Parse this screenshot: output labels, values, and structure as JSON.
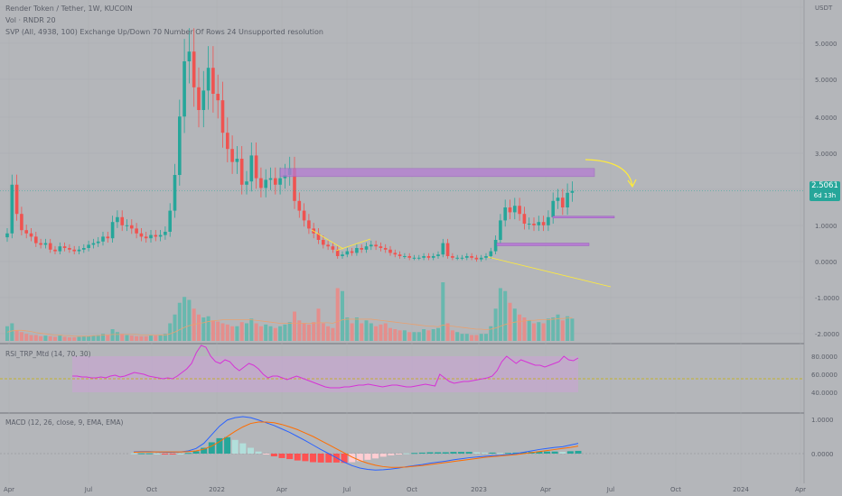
{
  "header": {
    "symbol_line": "Render Token / Tether, 1W, KUCOIN",
    "volume_line": "Vol · RNDR  20",
    "svp_line": "SVP (All, 4938, 100)  Exchange  Up/Down  70  Number Of Rows  24  Unsupported resolution"
  },
  "price_tag": {
    "price": "2.5061",
    "countdown": "6d 13h"
  },
  "colors": {
    "background": "#b4b6ba",
    "up": "#26a69a",
    "down": "#ef5350",
    "zone": "#b57cd2",
    "rsi_line": "#d633d6",
    "rsi_band": "#c6a6d0",
    "macd_line": "#2962ff",
    "signal_line": "#ff6d00",
    "annotation": "#ffeb3b"
  },
  "chart_data": [
    {
      "type": "candlestick",
      "title": "Render Token / Tether, 1W, KUCOIN",
      "y_axis_unit": "USDT",
      "y_ticks": [
        "USDT",
        "5.0000",
        "5.0000",
        "4.0000",
        "3.0000",
        "2.0000",
        "1.0000",
        "0.0000",
        "-1.0000",
        "-2.0000"
      ],
      "x_ticks": [
        "Apr",
        "Jul",
        "Oct",
        "2022",
        "Apr",
        "Jul",
        "Oct",
        "2023",
        "Apr",
        "Jul",
        "Oct",
        "2024",
        "Apr"
      ],
      "last_price": 2.5061,
      "closes": [
        1.2,
        2.7,
        1.8,
        1.3,
        1.2,
        1.1,
        0.9,
        0.85,
        0.9,
        0.7,
        0.65,
        0.8,
        0.75,
        0.7,
        0.65,
        0.7,
        0.75,
        0.85,
        0.9,
        0.95,
        1.1,
        1.05,
        1.55,
        1.7,
        1.45,
        1.45,
        1.35,
        1.2,
        1.1,
        1.05,
        1.15,
        1.1,
        1.15,
        1.25,
        1.9,
        3.0,
        4.8,
        6.5,
        6.8,
        5.7,
        5.0,
        5.6,
        6.3,
        5.5,
        5.3,
        4.3,
        3.8,
        3.4,
        3.5,
        2.7,
        2.8,
        3.6,
        2.9,
        2.6,
        2.85,
        2.9,
        2.7,
        2.9,
        3.0,
        3.2,
        2.2,
        1.9,
        1.6,
        1.35,
        1.2,
        1.0,
        0.85,
        0.8,
        0.7,
        0.5,
        0.55,
        0.65,
        0.6,
        0.75,
        0.7,
        0.8,
        0.85,
        0.8,
        0.75,
        0.7,
        0.6,
        0.55,
        0.5,
        0.5,
        0.45,
        0.45,
        0.45,
        0.5,
        0.45,
        0.5,
        0.55,
        0.9,
        0.5,
        0.45,
        0.45,
        0.45,
        0.5,
        0.45,
        0.4,
        0.45,
        0.5,
        0.65,
        1.0,
        1.6,
        2.0,
        1.85,
        2.05,
        1.8,
        1.5,
        1.5,
        1.45,
        1.55,
        1.45,
        1.7,
        2.2,
        2.3,
        2.0,
        2.45,
        2.51
      ],
      "annotations": {
        "resistance_zone": [
          2.95,
          3.2
        ],
        "support_zones": [
          [
            1.68,
            1.73
          ],
          [
            0.82,
            0.9
          ]
        ]
      }
    },
    {
      "type": "bar",
      "title": "Vol · RNDR  20",
      "values": [
        0.25,
        0.3,
        0.18,
        0.15,
        0.12,
        0.1,
        0.1,
        0.08,
        0.09,
        0.08,
        0.07,
        0.09,
        0.07,
        0.06,
        0.06,
        0.07,
        0.08,
        0.08,
        0.09,
        0.1,
        0.12,
        0.1,
        0.2,
        0.15,
        0.12,
        0.1,
        0.09,
        0.08,
        0.08,
        0.08,
        0.09,
        0.09,
        0.1,
        0.12,
        0.3,
        0.45,
        0.65,
        0.75,
        0.7,
        0.55,
        0.45,
        0.4,
        0.42,
        0.35,
        0.33,
        0.3,
        0.28,
        0.25,
        0.25,
        0.32,
        0.3,
        0.38,
        0.3,
        0.25,
        0.28,
        0.25,
        0.22,
        0.25,
        0.28,
        0.32,
        0.5,
        0.35,
        0.3,
        0.28,
        0.32,
        0.55,
        0.3,
        0.25,
        0.22,
        0.9,
        0.85,
        0.4,
        0.3,
        0.4,
        0.3,
        0.35,
        0.3,
        0.25,
        0.28,
        0.3,
        0.22,
        0.2,
        0.18,
        0.18,
        0.15,
        0.15,
        0.15,
        0.2,
        0.18,
        0.2,
        0.22,
        1.0,
        0.3,
        0.18,
        0.15,
        0.12,
        0.12,
        0.1,
        0.1,
        0.12,
        0.12,
        0.25,
        0.55,
        0.9,
        0.85,
        0.65,
        0.55,
        0.45,
        0.4,
        0.35,
        0.3,
        0.32,
        0.3,
        0.38,
        0.4,
        0.45,
        0.35,
        0.42,
        0.38
      ],
      "ma_values": [
        0.15,
        0.17,
        0.18,
        0.18,
        0.17,
        0.16,
        0.14,
        0.13,
        0.12,
        0.11,
        0.1,
        0.1,
        0.09,
        0.09,
        0.08,
        0.08,
        0.08,
        0.08,
        0.09,
        0.09,
        0.1,
        0.1,
        0.11,
        0.11,
        0.11,
        0.11,
        0.11,
        0.11,
        0.1,
        0.1,
        0.1,
        0.1,
        0.1,
        0.1,
        0.12,
        0.15,
        0.19,
        0.23,
        0.26,
        0.28,
        0.3,
        0.31,
        0.33,
        0.34,
        0.35,
        0.36,
        0.36,
        0.36,
        0.36,
        0.36,
        0.36,
        0.36,
        0.35,
        0.34,
        0.33,
        0.32,
        0.31,
        0.3,
        0.3,
        0.3,
        0.3,
        0.3,
        0.3,
        0.3,
        0.3,
        0.31,
        0.31,
        0.31,
        0.3,
        0.33,
        0.36,
        0.37,
        0.37,
        0.37,
        0.37,
        0.37,
        0.37,
        0.36,
        0.35,
        0.34,
        0.33,
        0.32,
        0.31,
        0.3,
        0.29,
        0.28,
        0.27,
        0.26,
        0.25,
        0.25,
        0.24,
        0.27,
        0.26,
        0.25,
        0.24,
        0.23,
        0.22,
        0.21,
        0.2,
        0.2,
        0.19,
        0.2,
        0.22,
        0.25,
        0.28,
        0.3,
        0.32,
        0.33,
        0.34,
        0.35,
        0.35,
        0.36,
        0.36,
        0.36,
        0.37,
        0.38,
        0.38,
        0.39,
        0.39
      ]
    },
    {
      "type": "line",
      "title": "RSI_TRP_Mtd (14, 70, 30)",
      "y_ticks": [
        "80.0000",
        "60.0000",
        "40.0000"
      ],
      "band": [
        40,
        80
      ],
      "midline": 55,
      "values": [
        58,
        58,
        57,
        57,
        56,
        56,
        57,
        56,
        58,
        59,
        57,
        58,
        60,
        62,
        61,
        60,
        58,
        57,
        56,
        55,
        56,
        55,
        58,
        62,
        66,
        72,
        84,
        92,
        90,
        80,
        74,
        72,
        76,
        74,
        68,
        64,
        68,
        72,
        70,
        66,
        60,
        56,
        58,
        58,
        56,
        54,
        56,
        58,
        56,
        54,
        52,
        50,
        48,
        46,
        45,
        45,
        45,
        46,
        46,
        47,
        48,
        48,
        49,
        48,
        47,
        46,
        47,
        48,
        48,
        47,
        46,
        46,
        47,
        48,
        49,
        48,
        47,
        60,
        56,
        52,
        50,
        51,
        52,
        52,
        53,
        54,
        55,
        56,
        58,
        64,
        74,
        80,
        76,
        72,
        76,
        74,
        72,
        70,
        70,
        68,
        70,
        72,
        74,
        80,
        76,
        75,
        78
      ]
    },
    {
      "type": "line",
      "title": "MACD (12, 26, close, 9, EMA, EMA)",
      "y_ticks": [
        "1.0000",
        "0.0000"
      ],
      "macd": [
        0.05,
        0.06,
        0.06,
        0.05,
        0.04,
        0.04,
        0.05,
        0.08,
        0.15,
        0.3,
        0.55,
        0.8,
        0.98,
        1.05,
        1.08,
        1.05,
        0.98,
        0.9,
        0.82,
        0.72,
        0.62,
        0.5,
        0.38,
        0.25,
        0.12,
        0.0,
        -0.12,
        -0.25,
        -0.35,
        -0.42,
        -0.46,
        -0.48,
        -0.47,
        -0.45,
        -0.42,
        -0.38,
        -0.35,
        -0.32,
        -0.28,
        -0.25,
        -0.22,
        -0.18,
        -0.15,
        -0.12,
        -0.1,
        -0.08,
        -0.06,
        -0.05,
        -0.03,
        0.0,
        0.04,
        0.08,
        0.12,
        0.15,
        0.18,
        0.2,
        0.25,
        0.3
      ],
      "signal": [
        0.04,
        0.05,
        0.05,
        0.05,
        0.05,
        0.05,
        0.05,
        0.06,
        0.08,
        0.13,
        0.22,
        0.35,
        0.5,
        0.65,
        0.78,
        0.88,
        0.92,
        0.92,
        0.9,
        0.85,
        0.78,
        0.7,
        0.6,
        0.5,
        0.38,
        0.26,
        0.14,
        0.02,
        -0.1,
        -0.2,
        -0.28,
        -0.34,
        -0.38,
        -0.4,
        -0.4,
        -0.39,
        -0.37,
        -0.35,
        -0.32,
        -0.29,
        -0.26,
        -0.23,
        -0.2,
        -0.17,
        -0.14,
        -0.11,
        -0.09,
        -0.07,
        -0.05,
        -0.03,
        0.0,
        0.03,
        0.06,
        0.09,
        0.12,
        0.15,
        0.18,
        0.22
      ],
      "histogram": [
        0.01,
        0.01,
        0.01,
        0.0,
        -0.01,
        -0.01,
        0.0,
        0.02,
        0.07,
        0.17,
        0.33,
        0.45,
        0.48,
        0.4,
        0.3,
        0.17,
        0.06,
        -0.02,
        -0.08,
        -0.13,
        -0.16,
        -0.2,
        -0.22,
        -0.25,
        -0.26,
        -0.26,
        -0.26,
        -0.27,
        -0.25,
        -0.22,
        -0.18,
        -0.14,
        -0.09,
        -0.05,
        -0.02,
        0.01,
        0.02,
        0.03,
        0.04,
        0.04,
        0.04,
        0.05,
        0.05,
        0.05,
        0.04,
        0.03,
        0.03,
        0.02,
        0.02,
        0.03,
        0.04,
        0.05,
        0.06,
        0.06,
        0.06,
        0.05,
        0.07,
        0.08
      ]
    }
  ],
  "indicators": {
    "rsi_title": "RSI_TRP_Mtd (14, 70, 30)",
    "macd_title": "MACD (12, 26, close, 9, EMA, EMA)"
  }
}
